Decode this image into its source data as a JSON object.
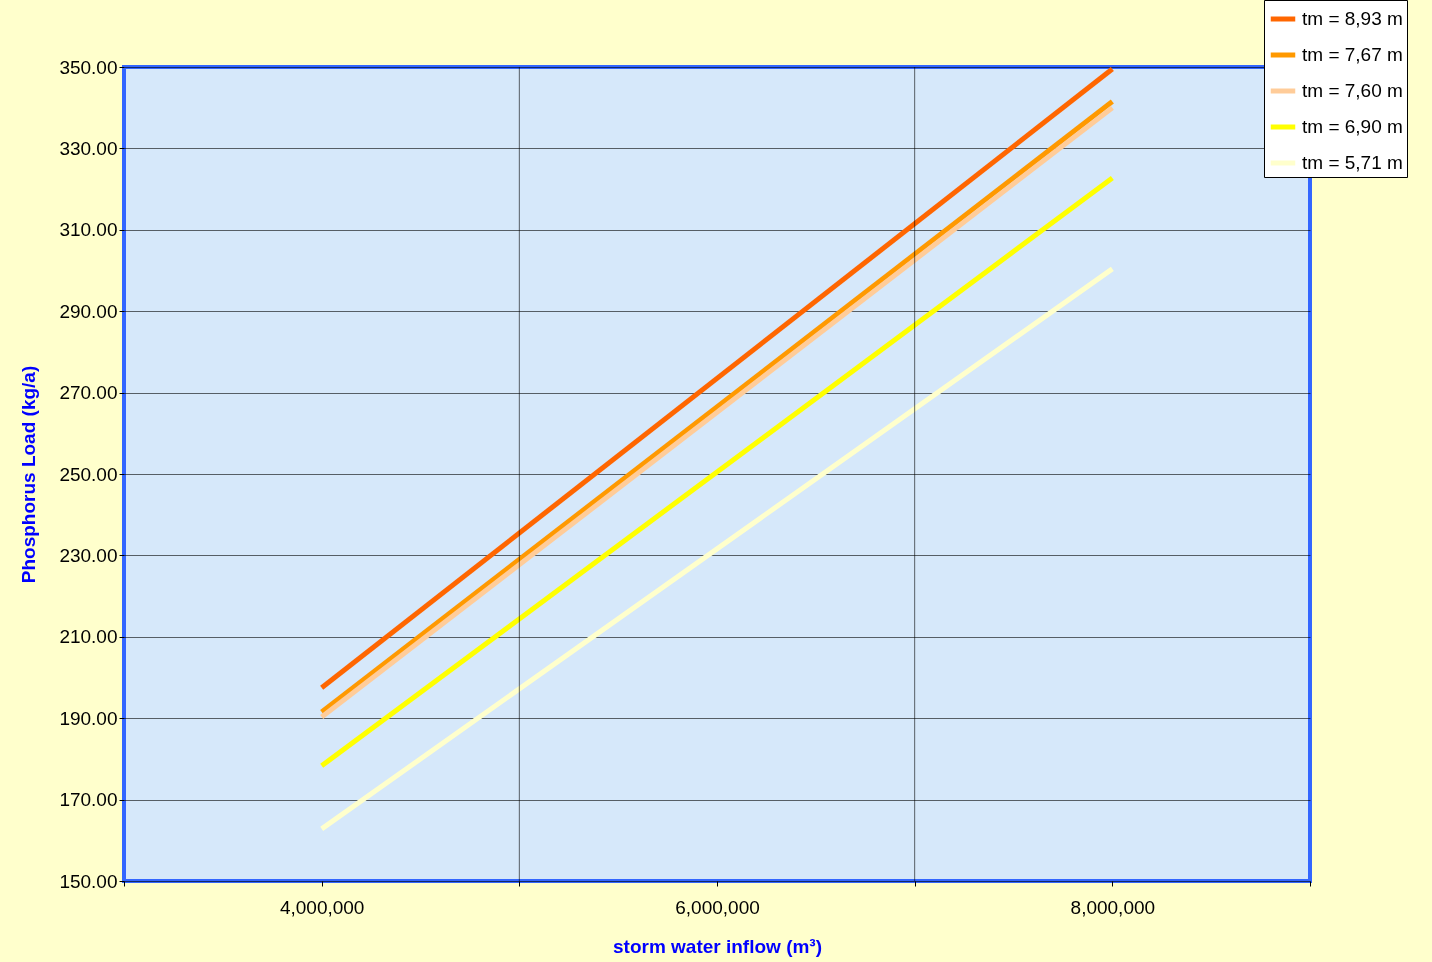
{
  "chart_data": {
    "type": "line",
    "xlabel": "storm water inflow (m³)",
    "ylabel": "Phosphorus Load (kg/a)",
    "x": [
      4000000,
      8000000
    ],
    "series": [
      {
        "name": "tm = 8,93 m",
        "color": "#ff6600",
        "values": [
          197.5,
          349.5
        ]
      },
      {
        "name": "tm = 7,67 m",
        "color": "#ff9900",
        "values": [
          191.5,
          341.5
        ]
      },
      {
        "name": "tm = 7,60 m",
        "color": "#ffcc99",
        "values": [
          190.3,
          340.0
        ]
      },
      {
        "name": "tm = 6,90 m",
        "color": "#ffff00",
        "values": [
          178.3,
          322.7
        ]
      },
      {
        "name": "tm = 5,71 m",
        "color": "#ffffcc",
        "values": [
          162.8,
          300.4
        ]
      }
    ],
    "xlim": [
      3000000,
      9000000
    ],
    "xticks": [
      {
        "value": 3000000,
        "label": null
      },
      {
        "value": 4000000,
        "label": "4,000,000"
      },
      {
        "value": 5000000,
        "label": null
      },
      {
        "value": 6000000,
        "label": "6,000,000"
      },
      {
        "value": 7000000,
        "label": null
      },
      {
        "value": 8000000,
        "label": "8,000,000"
      },
      {
        "value": 9000000,
        "label": null
      }
    ],
    "ylim": [
      150,
      350
    ],
    "yticks": [
      {
        "value": 150,
        "label": "150.00"
      },
      {
        "value": 170,
        "label": "170.00"
      },
      {
        "value": 190,
        "label": "190.00"
      },
      {
        "value": 210,
        "label": "210.00"
      },
      {
        "value": 230,
        "label": "230.00"
      },
      {
        "value": 250,
        "label": "250.00"
      },
      {
        "value": 270,
        "label": "270.00"
      },
      {
        "value": 290,
        "label": "290.00"
      },
      {
        "value": 310,
        "label": "310.00"
      },
      {
        "value": 330,
        "label": "330.00"
      },
      {
        "value": 350,
        "label": "350.00"
      }
    ],
    "grid": true,
    "legend": "top right",
    "marker": "none",
    "line_style": "solid"
  }
}
